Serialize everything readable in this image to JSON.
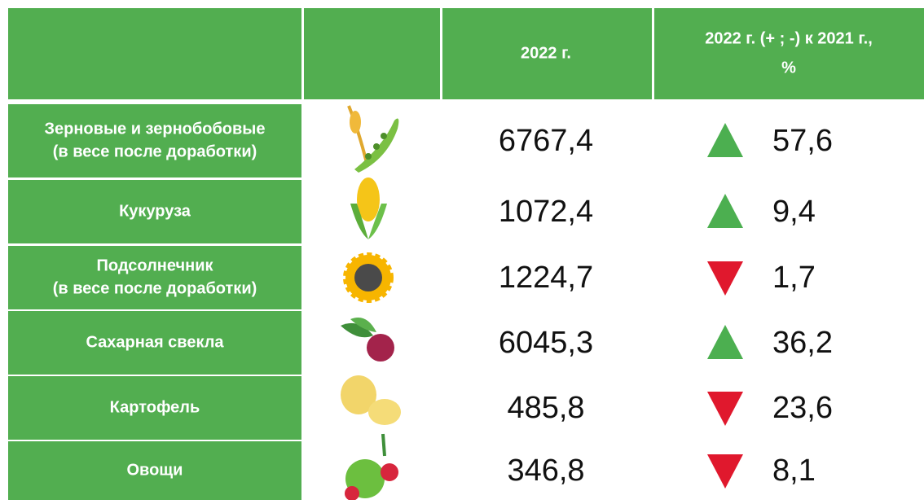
{
  "table": {
    "header": [
      [
        "2022 г."
      ],
      [
        "2022 г. (+ ; -) к  2021 г.,",
        "%"
      ]
    ],
    "rows": [
      {
        "name": [
          "Зерновые и зернобобовые",
          "(в весе после доработки)"
        ],
        "value": "6767,4",
        "change": "57,6",
        "trend": "up"
      },
      {
        "name": [
          "Кукуруза"
        ],
        "value": "1072,4",
        "change": "9,4",
        "trend": "up"
      },
      {
        "name": [
          "Подсолнечник",
          "(в весе после доработки)"
        ],
        "value": "1224,7",
        "change": "1,7",
        "trend": "down"
      },
      {
        "name": [
          "Сахарная свекла"
        ],
        "value": "6045,3",
        "change": "36,2",
        "trend": "up"
      },
      {
        "name": [
          "Картофель"
        ],
        "value": "485,8",
        "change": "23,6",
        "trend": "down"
      },
      {
        "name": [
          "Овощи"
        ],
        "value": "346,8",
        "change": "8,1",
        "trend": "down"
      }
    ]
  }
}
